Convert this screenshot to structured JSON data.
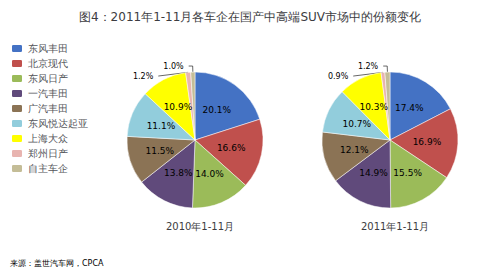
{
  "chart_data": [
    {
      "type": "pie",
      "title": "图4：2011年1-11月各车企在国产中高端SUV市场中的份额变化",
      "subtitle": "2010年1-11月",
      "annotations": [
        "来源：盖世汽车网，CPCA"
      ],
      "categories": [
        "东风丰田",
        "北京现代",
        "东风日产",
        "一汽丰田",
        "广汽丰田",
        "东风悦达起亚",
        "上海大众",
        "郑州日产",
        "自主车企"
      ],
      "values": [
        20.1,
        16.6,
        14.0,
        13.8,
        11.5,
        11.1,
        10.9,
        1.2,
        1.0
      ],
      "value_labels": [
        "20.1%",
        "16.6%",
        "14.0%",
        "13.8%",
        "11.5%",
        "11.1%",
        "10.9%",
        "1.2%",
        "1.0%"
      ],
      "colors": [
        "#4472C4",
        "#C0504D",
        "#9BBB59",
        "#604A7B",
        "#8B7355",
        "#92CDDC",
        "#FFFF00",
        "#E8B4B0",
        "#C4BD97"
      ],
      "data_labels": true,
      "legend": "left"
    },
    {
      "type": "pie",
      "subtitle": "2011年1-11月",
      "categories": [
        "东风丰田",
        "北京现代",
        "东风日产",
        "一汽丰田",
        "广汽丰田",
        "东风悦达起亚",
        "上海大众",
        "郑州日产",
        "自主车企"
      ],
      "values": [
        17.4,
        16.9,
        15.5,
        14.9,
        12.1,
        10.7,
        10.3,
        0.9,
        1.2
      ],
      "value_labels": [
        "17.4%",
        "16.9%",
        "15.5%",
        "14.9%",
        "12.1%",
        "10.7%",
        "10.3%",
        "0.9%",
        "1.2%"
      ],
      "colors": [
        "#4472C4",
        "#C0504D",
        "#9BBB59",
        "#604A7B",
        "#8B7355",
        "#92CDDC",
        "#FFFF00",
        "#E8B4B0",
        "#C4BD97"
      ],
      "data_labels": true
    }
  ]
}
